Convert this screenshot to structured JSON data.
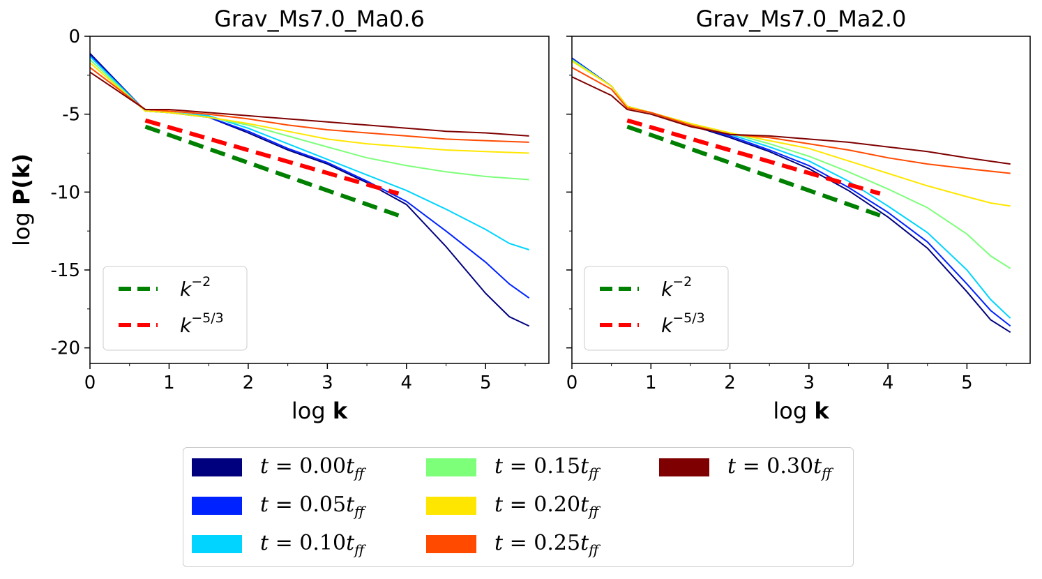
{
  "chart_data": [
    {
      "type": "line",
      "title": "Grav_Ms7.0_Ma0.6",
      "xlabel_prefix": "log ",
      "xlabel_bold": "k",
      "ylabel_prefix": "log ",
      "ylabel_bold": "P(k)",
      "xlim": [
        0,
        5.8
      ],
      "ylim": [
        -21,
        0
      ],
      "xticks": [
        "0",
        "1",
        "2",
        "3",
        "4",
        "5"
      ],
      "yticks": [
        "0",
        "-5",
        "-10",
        "-15",
        "-20"
      ],
      "reference_lines": [
        {
          "label_base": "k",
          "label_exp": "−2",
          "color": "#008000",
          "points": [
            [
              0.7,
              -5.8
            ],
            [
              3.9,
              -11.5
            ]
          ]
        },
        {
          "label_base": "k",
          "label_exp": "−5/3",
          "color": "#ff0000",
          "points": [
            [
              0.7,
              -5.4
            ],
            [
              3.9,
              -10.1
            ]
          ]
        }
      ],
      "series": [
        {
          "time": "0.00",
          "color": "#00007f",
          "points": [
            [
              0,
              -1.1
            ],
            [
              0.7,
              -4.8
            ],
            [
              1.0,
              -4.9
            ],
            [
              1.5,
              -5.2
            ],
            [
              2.0,
              -6.2
            ],
            [
              2.5,
              -7.3
            ],
            [
              3.0,
              -8.2
            ],
            [
              3.5,
              -9.4
            ],
            [
              4.0,
              -10.8
            ],
            [
              4.5,
              -13.5
            ],
            [
              5.0,
              -16.5
            ],
            [
              5.3,
              -18.0
            ],
            [
              5.55,
              -18.6
            ]
          ]
        },
        {
          "time": "0.05",
          "color": "#0022ff",
          "points": [
            [
              0,
              -1.2
            ],
            [
              0.7,
              -4.8
            ],
            [
              1.0,
              -4.9
            ],
            [
              1.5,
              -5.2
            ],
            [
              2.0,
              -6.1
            ],
            [
              2.5,
              -7.2
            ],
            [
              3.0,
              -8.1
            ],
            [
              3.5,
              -9.3
            ],
            [
              4.0,
              -10.6
            ],
            [
              4.5,
              -12.5
            ],
            [
              5.0,
              -14.5
            ],
            [
              5.3,
              -15.9
            ],
            [
              5.55,
              -16.8
            ]
          ]
        },
        {
          "time": "0.10",
          "color": "#00d4ff",
          "points": [
            [
              0,
              -1.3
            ],
            [
              0.7,
              -4.8
            ],
            [
              1.0,
              -4.9
            ],
            [
              1.5,
              -5.1
            ],
            [
              2.0,
              -5.9
            ],
            [
              2.5,
              -6.9
            ],
            [
              3.0,
              -7.9
            ],
            [
              3.5,
              -8.9
            ],
            [
              4.0,
              -9.9
            ],
            [
              4.5,
              -11.1
            ],
            [
              5.0,
              -12.4
            ],
            [
              5.3,
              -13.3
            ],
            [
              5.55,
              -13.7
            ]
          ]
        },
        {
          "time": "0.15",
          "color": "#7dff7a",
          "points": [
            [
              0,
              -1.5
            ],
            [
              0.7,
              -4.8
            ],
            [
              1.0,
              -4.9
            ],
            [
              1.5,
              -5.2
            ],
            [
              2.0,
              -5.7
            ],
            [
              2.5,
              -6.4
            ],
            [
              3.0,
              -7.1
            ],
            [
              3.5,
              -7.8
            ],
            [
              4.0,
              -8.3
            ],
            [
              4.5,
              -8.7
            ],
            [
              5.0,
              -9.0
            ],
            [
              5.55,
              -9.2
            ]
          ]
        },
        {
          "time": "0.20",
          "color": "#ffe600",
          "points": [
            [
              0,
              -1.7
            ],
            [
              0.7,
              -4.8
            ],
            [
              1.0,
              -4.9
            ],
            [
              1.5,
              -5.2
            ],
            [
              2.0,
              -5.6
            ],
            [
              2.5,
              -6.1
            ],
            [
              3.0,
              -6.6
            ],
            [
              3.5,
              -6.9
            ],
            [
              4.0,
              -7.1
            ],
            [
              4.5,
              -7.3
            ],
            [
              5.0,
              -7.4
            ],
            [
              5.55,
              -7.5
            ]
          ]
        },
        {
          "time": "0.25",
          "color": "#ff4a00",
          "points": [
            [
              0,
              -2.0
            ],
            [
              0.7,
              -4.7
            ],
            [
              1.0,
              -4.8
            ],
            [
              1.5,
              -5.0
            ],
            [
              2.0,
              -5.3
            ],
            [
              2.5,
              -5.7
            ],
            [
              3.0,
              -6.0
            ],
            [
              3.5,
              -6.2
            ],
            [
              4.0,
              -6.4
            ],
            [
              4.5,
              -6.6
            ],
            [
              5.0,
              -6.7
            ],
            [
              5.55,
              -6.8
            ]
          ]
        },
        {
          "time": "0.30",
          "color": "#7f0000",
          "points": [
            [
              0,
              -2.3
            ],
            [
              0.7,
              -4.7
            ],
            [
              1.0,
              -4.7
            ],
            [
              1.5,
              -4.9
            ],
            [
              2.0,
              -5.1
            ],
            [
              2.5,
              -5.3
            ],
            [
              3.0,
              -5.5
            ],
            [
              3.5,
              -5.7
            ],
            [
              4.0,
              -5.9
            ],
            [
              4.5,
              -6.1
            ],
            [
              5.0,
              -6.2
            ],
            [
              5.55,
              -6.4
            ]
          ]
        }
      ]
    },
    {
      "type": "line",
      "title": "Grav_Ms7.0_Ma2.0",
      "xlabel_prefix": "log ",
      "xlabel_bold": "k",
      "xlim": [
        0,
        5.8
      ],
      "ylim": [
        -21,
        0
      ],
      "xticks": [
        "0",
        "1",
        "2",
        "3",
        "4",
        "5"
      ],
      "reference_lines": [
        {
          "label_base": "k",
          "label_exp": "−2",
          "color": "#008000",
          "points": [
            [
              0.7,
              -5.8
            ],
            [
              3.9,
              -11.5
            ]
          ]
        },
        {
          "label_base": "k",
          "label_exp": "−5/3",
          "color": "#ff0000",
          "points": [
            [
              0.7,
              -5.4
            ],
            [
              3.9,
              -10.1
            ]
          ]
        }
      ],
      "series": [
        {
          "time": "0.00",
          "color": "#00007f",
          "points": [
            [
              0,
              -1.4
            ],
            [
              0.5,
              -3.2
            ],
            [
              0.7,
              -4.5
            ],
            [
              1.0,
              -4.9
            ],
            [
              1.5,
              -5.7
            ],
            [
              2.0,
              -6.5
            ],
            [
              2.5,
              -7.4
            ],
            [
              3.0,
              -8.5
            ],
            [
              3.5,
              -9.9
            ],
            [
              4.0,
              -11.6
            ],
            [
              4.5,
              -13.6
            ],
            [
              5.0,
              -16.4
            ],
            [
              5.3,
              -18.2
            ],
            [
              5.55,
              -19.0
            ]
          ]
        },
        {
          "time": "0.05",
          "color": "#0022ff",
          "points": [
            [
              0,
              -1.4
            ],
            [
              0.5,
              -3.2
            ],
            [
              0.7,
              -4.5
            ],
            [
              1.0,
              -4.9
            ],
            [
              1.5,
              -5.7
            ],
            [
              2.0,
              -6.4
            ],
            [
              2.5,
              -7.3
            ],
            [
              3.0,
              -8.3
            ],
            [
              3.5,
              -9.7
            ],
            [
              4.0,
              -11.3
            ],
            [
              4.5,
              -13.2
            ],
            [
              5.0,
              -15.9
            ],
            [
              5.3,
              -17.6
            ],
            [
              5.55,
              -18.6
            ]
          ]
        },
        {
          "time": "0.10",
          "color": "#00d4ff",
          "points": [
            [
              0,
              -1.5
            ],
            [
              0.5,
              -3.2
            ],
            [
              0.7,
              -4.5
            ],
            [
              1.0,
              -4.9
            ],
            [
              1.5,
              -5.6
            ],
            [
              2.0,
              -6.3
            ],
            [
              2.5,
              -7.1
            ],
            [
              3.0,
              -8.0
            ],
            [
              3.5,
              -9.3
            ],
            [
              4.0,
              -10.9
            ],
            [
              4.5,
              -12.6
            ],
            [
              5.0,
              -15.0
            ],
            [
              5.3,
              -16.9
            ],
            [
              5.55,
              -18.1
            ]
          ]
        },
        {
          "time": "0.15",
          "color": "#7dff7a",
          "points": [
            [
              0,
              -1.5
            ],
            [
              0.5,
              -3.2
            ],
            [
              0.7,
              -4.5
            ],
            [
              1.0,
              -4.9
            ],
            [
              1.5,
              -5.6
            ],
            [
              2.0,
              -6.2
            ],
            [
              2.5,
              -6.9
            ],
            [
              3.0,
              -7.7
            ],
            [
              3.5,
              -8.7
            ],
            [
              4.0,
              -9.8
            ],
            [
              4.5,
              -11.0
            ],
            [
              5.0,
              -12.7
            ],
            [
              5.3,
              -14.1
            ],
            [
              5.55,
              -14.9
            ]
          ]
        },
        {
          "time": "0.20",
          "color": "#ffe600",
          "points": [
            [
              0,
              -1.6
            ],
            [
              0.5,
              -3.2
            ],
            [
              0.7,
              -4.5
            ],
            [
              1.0,
              -4.9
            ],
            [
              1.5,
              -5.6
            ],
            [
              2.0,
              -6.2
            ],
            [
              2.5,
              -6.7
            ],
            [
              3.0,
              -7.2
            ],
            [
              3.5,
              -8.0
            ],
            [
              4.0,
              -8.8
            ],
            [
              4.5,
              -9.6
            ],
            [
              5.0,
              -10.3
            ],
            [
              5.3,
              -10.7
            ],
            [
              5.55,
              -10.9
            ]
          ]
        },
        {
          "time": "0.25",
          "color": "#ff4a00",
          "points": [
            [
              0,
              -2.0
            ],
            [
              0.5,
              -3.4
            ],
            [
              0.7,
              -4.6
            ],
            [
              1.0,
              -4.9
            ],
            [
              1.5,
              -5.7
            ],
            [
              2.0,
              -6.3
            ],
            [
              2.5,
              -6.5
            ],
            [
              3.0,
              -6.9
            ],
            [
              3.5,
              -7.3
            ],
            [
              4.0,
              -7.8
            ],
            [
              4.5,
              -8.2
            ],
            [
              5.0,
              -8.5
            ],
            [
              5.55,
              -8.8
            ]
          ]
        },
        {
          "time": "0.30",
          "color": "#7f0000",
          "points": [
            [
              0,
              -2.6
            ],
            [
              0.5,
              -3.8
            ],
            [
              0.7,
              -4.7
            ],
            [
              1.0,
              -5.0
            ],
            [
              1.5,
              -5.8
            ],
            [
              2.0,
              -6.3
            ],
            [
              2.5,
              -6.4
            ],
            [
              3.0,
              -6.6
            ],
            [
              3.5,
              -6.8
            ],
            [
              4.0,
              -7.1
            ],
            [
              4.5,
              -7.4
            ],
            [
              5.0,
              -7.8
            ],
            [
              5.55,
              -8.2
            ]
          ]
        }
      ]
    }
  ],
  "legend": {
    "items": [
      {
        "prefix": "t = ",
        "value": "0.00",
        "unit": "t",
        "sub": "ff",
        "color": "#00007f"
      },
      {
        "prefix": "t = ",
        "value": "0.05",
        "unit": "t",
        "sub": "ff",
        "color": "#0022ff"
      },
      {
        "prefix": "t = ",
        "value": "0.10",
        "unit": "t",
        "sub": "ff",
        "color": "#00d4ff"
      },
      {
        "prefix": "t = ",
        "value": "0.15",
        "unit": "t",
        "sub": "ff",
        "color": "#7dff7a"
      },
      {
        "prefix": "t = ",
        "value": "0.20",
        "unit": "t",
        "sub": "ff",
        "color": "#ffe600"
      },
      {
        "prefix": "t = ",
        "value": "0.25",
        "unit": "t",
        "sub": "ff",
        "color": "#ff4a00"
      },
      {
        "prefix": "t = ",
        "value": "0.30",
        "unit": "t",
        "sub": "ff",
        "color": "#7f0000"
      }
    ]
  }
}
